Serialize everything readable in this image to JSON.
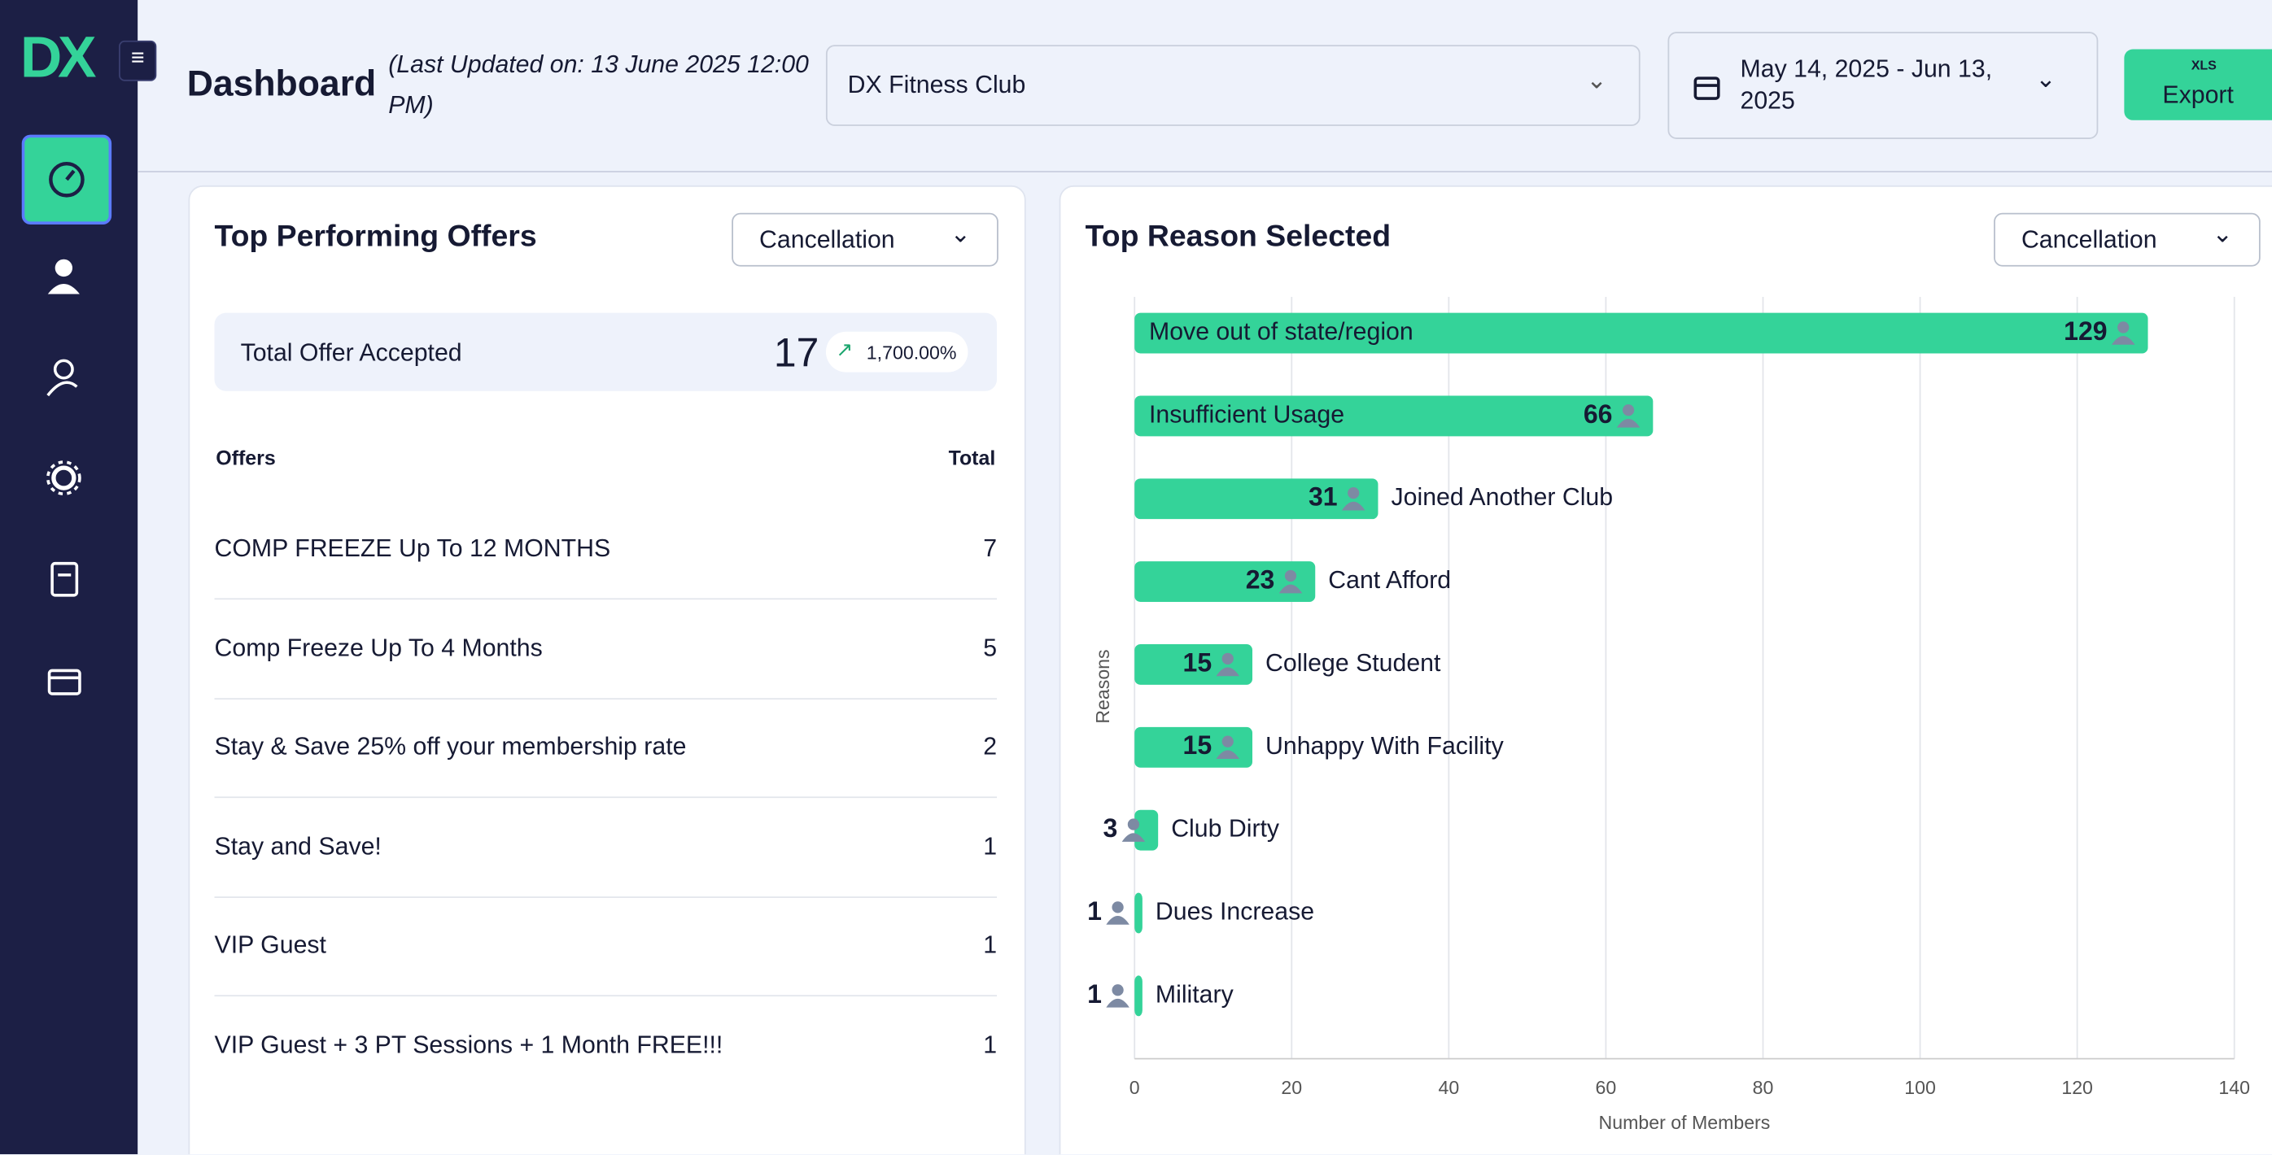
{
  "header": {
    "brand": "DX",
    "title": "Dashboard",
    "last_updated": "(Last Updated on: 13 June 2025 12:00 PM)",
    "club": "DX Fitness Club",
    "date_range": "May 14, 2025 - Jun 13, 2025",
    "export_icon": "XLS",
    "export": "Export"
  },
  "offers": {
    "title": "Top Performing Offers",
    "filter": "Cancellation",
    "summary_label": "Total Offer Accepted",
    "summary_total": 17,
    "summary_change": "1,700.00%",
    "columns": [
      "Offers",
      "Total"
    ],
    "rows": [
      [
        "COMP FREEZE Up To 12 MONTHS",
        7
      ],
      [
        "Comp Freeze Up To 4 Months",
        5
      ],
      [
        "Stay & Save 25% off your membership rate",
        2
      ],
      [
        "Stay and Save!",
        1
      ],
      [
        "VIP Guest",
        1
      ],
      [
        "VIP Guest + 3 PT Sessions + 1 Month FREE!!!",
        1
      ]
    ]
  },
  "reasons": {
    "title": "Top Reason Selected",
    "filter": "Cancellation",
    "chart_data": {
      "type": "bar",
      "orientation": "horizontal",
      "categories": [
        "Move out of state/region",
        "Insufficient Usage",
        "Joined Another Club",
        "Cant Afford",
        "College Student",
        "Unhappy With Facility",
        "Club Dirty",
        "Dues Increase",
        "Military"
      ],
      "values": [
        129,
        66,
        31,
        23,
        15,
        15,
        3,
        1,
        1
      ],
      "color": "#34d399",
      "xlim": [
        0,
        140
      ],
      "xticks": [
        0,
        20,
        40,
        60,
        80,
        100,
        120,
        140
      ],
      "grid": true,
      "x_label": "Number of Members",
      "y_label": "Reasons"
    }
  }
}
